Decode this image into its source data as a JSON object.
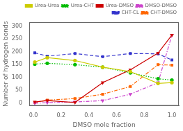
{
  "chart_data": {
    "type": "line",
    "xlabel": "DMSO mole fraction",
    "ylabel": "Number of hydrogen bonds",
    "x": [
      0.01,
      0.1,
      0.3,
      0.5,
      0.7,
      0.9,
      1.0
    ],
    "xlim": [
      -0.03,
      1.05
    ],
    "xticks": [
      {
        "value": 0,
        "label": "0.0"
      },
      0.2,
      0.4,
      0.6,
      0.8,
      {
        "value": 1,
        "label": "1.0"
      }
    ],
    "ylim": [
      -10,
      315
    ],
    "yticks": [
      0,
      50,
      100,
      150,
      200,
      250,
      300
    ],
    "grid": false,
    "legend": "upper right",
    "series": [
      {
        "name": "Urea-Urea",
        "color": "#cccc00",
        "marker": "circle",
        "line_style": "solid",
        "values": [
          160,
          177,
          166,
          140,
          123,
          77,
          80
        ]
      },
      {
        "name": "Urea-CHT",
        "color": "#00bb00",
        "marker": "circle",
        "line_style": "dotted",
        "values": [
          152,
          155,
          150,
          140,
          118,
          95,
          90
        ]
      },
      {
        "name": "Urea-DMSO",
        "color": "#cc0000",
        "marker": "triangle_down",
        "line_style": "solid",
        "values": [
          5,
          10,
          3,
          80,
          130,
          195,
          265
        ]
      },
      {
        "name": "DMSO-DMSO",
        "color": "#cc44cc",
        "marker": "triangle_down",
        "line_style": "dashdot",
        "values": [
          0,
          2,
          5,
          10,
          35,
          80,
          265
        ]
      },
      {
        "name": "CHT-CL",
        "color": "#3333cc",
        "marker": "square",
        "line_style": "dashed",
        "values": [
          196,
          183,
          193,
          181,
          193,
          192,
          168
        ]
      },
      {
        "name": "CHT-DMSO",
        "color": "#ff6600",
        "marker": "square",
        "line_style": "dashdot",
        "values": [
          3,
          12,
          18,
          35,
          65,
          150,
          148
        ]
      }
    ]
  }
}
